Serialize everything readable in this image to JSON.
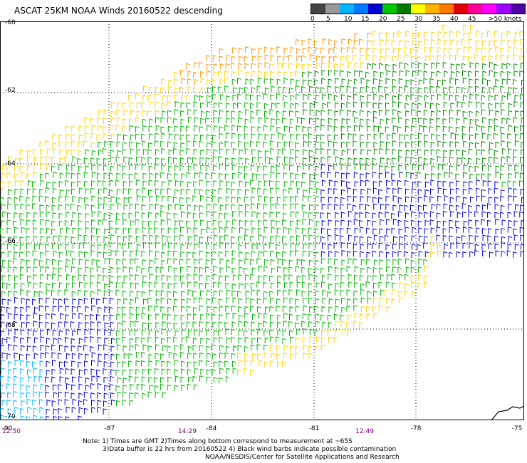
{
  "title": "ASCAT 25KM NOAA Winds 20160522 descending",
  "legend": {
    "labels": [
      "0",
      "5",
      "10",
      "15",
      "20",
      "25",
      "30",
      "35",
      "40",
      "45",
      ">50 knots"
    ],
    "colors": [
      "#444444",
      "#999999",
      "#00b4ff",
      "#0078ff",
      "#0000d0",
      "#00c800",
      "#007800",
      "#ffff00",
      "#ffb400",
      "#ff7800",
      "#e00000",
      "#ff0096",
      "#ff00ff",
      "#a000ff",
      "#5000a0"
    ]
  },
  "map": {
    "lat_labels": [
      "-60",
      "-62",
      "-64",
      "-66",
      "-68",
      "-70"
    ],
    "lon_labels": [
      "-90",
      "-87",
      "-84",
      "-81",
      "-78",
      "-75"
    ],
    "time_labels": [
      "12:50",
      "14:29",
      "12:49"
    ]
  },
  "notes": [
    "Note: 1) Times are GMT 2)Times along bottom correspond to measurement at ~65S",
    "3)Data buffer is 22 hrs from 20160522 4) Black wind barbs indicate possible contamination",
    "NOAA/NESDIS/Center for Satellite Applications and Research"
  ]
}
